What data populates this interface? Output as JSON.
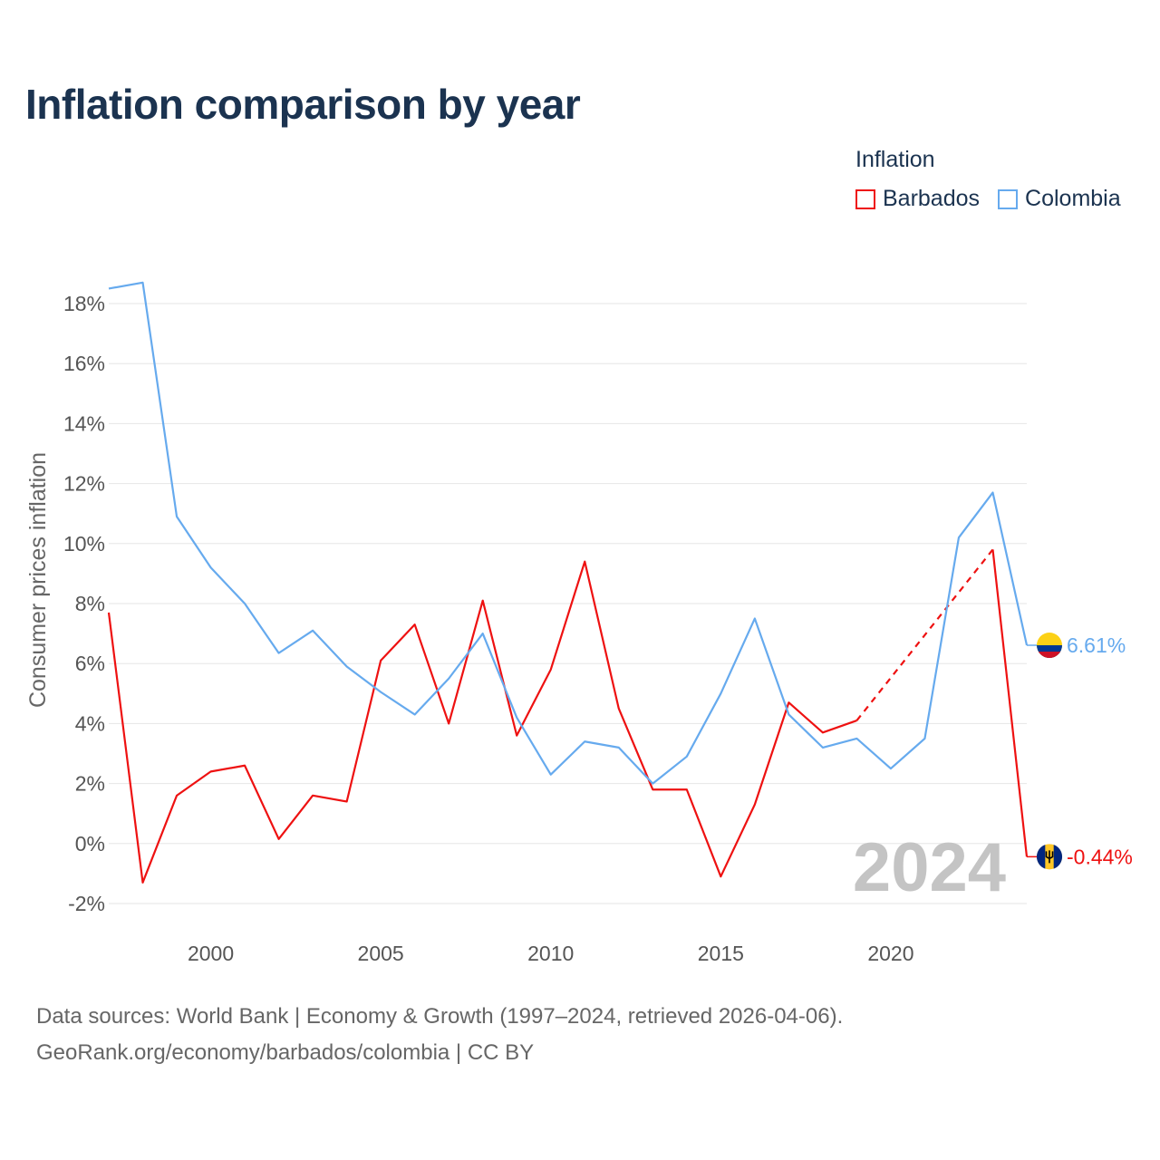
{
  "title": "Inflation comparison by year",
  "legend": {
    "title": "Inflation",
    "items": [
      {
        "label": "Barbados",
        "color": "#ee1111"
      },
      {
        "label": "Colombia",
        "color": "#66aaee"
      }
    ]
  },
  "chart_data": {
    "type": "line",
    "title": "Inflation comparison by year",
    "xlabel": "",
    "ylabel": "Consumer prices inflation",
    "xlim": [
      1997,
      2024
    ],
    "ylim": [
      -2,
      18
    ],
    "x_ticks": [
      2000,
      2005,
      2010,
      2015,
      2020
    ],
    "x_tick_labels": [
      "2000",
      "2005",
      "2010",
      "2015",
      "2020"
    ],
    "y_ticks": [
      -2,
      0,
      2,
      4,
      6,
      8,
      10,
      12,
      14,
      16,
      18
    ],
    "y_tick_labels": [
      "-2%",
      "0%",
      "2%",
      "4%",
      "6%",
      "8%",
      "10%",
      "12%",
      "14%",
      "16%",
      "18%"
    ],
    "year_watermark": "2024",
    "x": [
      1997,
      1998,
      1999,
      2000,
      2001,
      2002,
      2003,
      2004,
      2005,
      2006,
      2007,
      2008,
      2009,
      2010,
      2011,
      2012,
      2013,
      2014,
      2015,
      2016,
      2017,
      2018,
      2019,
      2020,
      2021,
      2022,
      2023,
      2024
    ],
    "series": [
      {
        "name": "Barbados",
        "color": "#ee1111",
        "values": [
          7.7,
          -1.3,
          1.6,
          2.4,
          2.6,
          0.15,
          1.6,
          1.4,
          6.1,
          7.3,
          4.0,
          8.1,
          3.6,
          5.8,
          9.4,
          4.5,
          1.8,
          1.8,
          -1.1,
          1.3,
          4.7,
          3.7,
          4.1,
          null,
          null,
          null,
          9.8,
          -0.44
        ],
        "gap_dashed": [
          [
            2019,
            4.1
          ],
          [
            2023,
            9.8
          ]
        ],
        "end_label": "-0.44%"
      },
      {
        "name": "Colombia",
        "color": "#66aaee",
        "values": [
          18.5,
          18.7,
          10.9,
          9.2,
          8.0,
          6.35,
          7.1,
          5.9,
          5.05,
          4.3,
          5.5,
          7.0,
          4.2,
          2.3,
          3.4,
          3.2,
          2.0,
          2.9,
          5.0,
          7.5,
          4.3,
          3.2,
          3.5,
          2.5,
          3.5,
          10.2,
          11.7,
          6.61
        ],
        "end_label": "6.61%"
      }
    ]
  },
  "footer": {
    "line1": "Data sources: World Bank | Economy & Growth (1997–2024, retrieved 2026-04-06).",
    "line2": "GeoRank.org/economy/barbados/colombia | CC BY"
  }
}
